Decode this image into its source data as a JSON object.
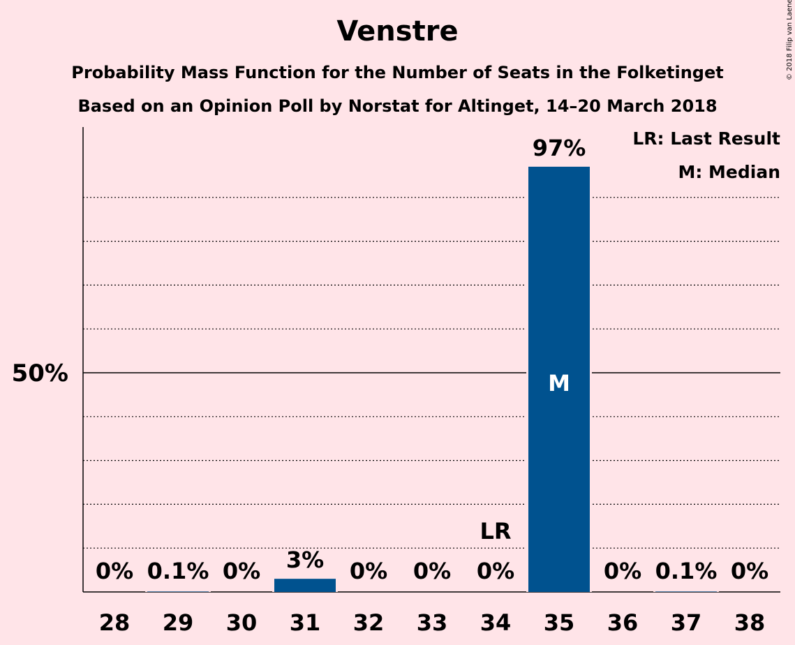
{
  "title": "Venstre",
  "subtitle_1": "Probability Mass Function for the Number of Seats in the Folketinget",
  "subtitle_2": "Based on an Opinion Poll by Norstat for Altinget, 14–20 March 2018",
  "copyright": "© 2018 Filip van Laenen",
  "legend": {
    "last_result": "LR: Last Result",
    "median": "M: Median"
  },
  "colors": {
    "background": "#FFE4E8",
    "bar": "#00528F"
  },
  "chart_data": {
    "type": "bar",
    "categories": [
      "28",
      "29",
      "30",
      "31",
      "32",
      "33",
      "34",
      "35",
      "36",
      "37",
      "38"
    ],
    "values": [
      0,
      0.1,
      0,
      3,
      0,
      0,
      0,
      97,
      0,
      0.1,
      0
    ],
    "value_labels": [
      "0%",
      "0.1%",
      "0%",
      "3%",
      "0%",
      "0%",
      "0%",
      "97%",
      "0%",
      "0.1%",
      "0%"
    ],
    "ylim": [
      0,
      100
    ],
    "y_tick_label": "50%",
    "y_tick_value": 50,
    "grid": "dotted every 10%",
    "last_result_category": "34",
    "last_result_label": "LR",
    "median_category": "35",
    "median_label": "M"
  }
}
